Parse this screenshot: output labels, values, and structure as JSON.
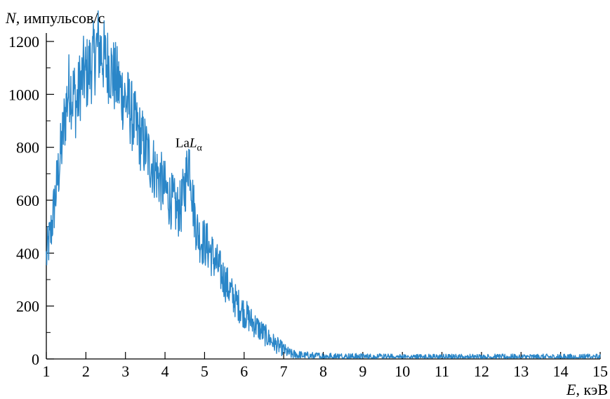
{
  "chart_data": {
    "type": "line",
    "ylabel_symbol": "N",
    "ylabel_unit": ", импульсов/с",
    "xlabel_symbol": "E",
    "xlabel_unit": ", кэВ",
    "xlim": [
      1,
      15
    ],
    "ylim": [
      0,
      1200
    ],
    "x_ticks": [
      1,
      2,
      3,
      4,
      5,
      6,
      7,
      8,
      9,
      10,
      11,
      12,
      13,
      14,
      15
    ],
    "y_ticks": [
      0,
      200,
      400,
      600,
      800,
      1000,
      1200
    ],
    "grid": false,
    "series_color": "#2a86c8",
    "annotation": {
      "text_main": "La",
      "text_italic": "L",
      "text_sub": "α",
      "x": 4.6,
      "y": 790
    },
    "series": [
      {
        "x": [
          1.0,
          1.05,
          1.1,
          1.15,
          1.2,
          1.25,
          1.3,
          1.35,
          1.4,
          1.45,
          1.5,
          1.55,
          1.6,
          1.65,
          1.7,
          1.75,
          1.8,
          1.85,
          1.9,
          1.95,
          2.0,
          2.1,
          2.2,
          2.3,
          2.35,
          2.4,
          2.5,
          2.6,
          2.7,
          2.8,
          2.9,
          3.0,
          3.1,
          3.2,
          3.3,
          3.4,
          3.5,
          3.6,
          3.7,
          3.8,
          3.9,
          4.0,
          4.1,
          4.2,
          4.3,
          4.4,
          4.5,
          4.55,
          4.6,
          4.65,
          4.7,
          4.8,
          4.9,
          5.0,
          5.1,
          5.2,
          5.3,
          5.4,
          5.5,
          5.6,
          5.7,
          5.8,
          5.9,
          6.0,
          6.2,
          6.4,
          6.6,
          6.8,
          7.0,
          7.1,
          7.2,
          7.4,
          7.6,
          8.0,
          8.5,
          9.0,
          10.0,
          11.0,
          12.0,
          13.0,
          14.0,
          15.0
        ],
        "y": [
          380,
          430,
          460,
          520,
          580,
          640,
          700,
          760,
          820,
          890,
          950,
          1010,
          1040,
          990,
          1010,
          960,
          980,
          1040,
          1050,
          1080,
          1070,
          1100,
          1130,
          1190,
          1170,
          1160,
          1120,
          1110,
          1070,
          1040,
          1010,
          980,
          950,
          900,
          860,
          830,
          800,
          760,
          730,
          700,
          670,
          640,
          610,
          590,
          560,
          570,
          650,
          700,
          770,
          720,
          600,
          490,
          450,
          440,
          420,
          390,
          360,
          330,
          300,
          270,
          240,
          215,
          195,
          175,
          140,
          110,
          80,
          55,
          35,
          25,
          18,
          14,
          12,
          10,
          9,
          8,
          7,
          7,
          7,
          7,
          7,
          7
        ]
      }
    ]
  }
}
